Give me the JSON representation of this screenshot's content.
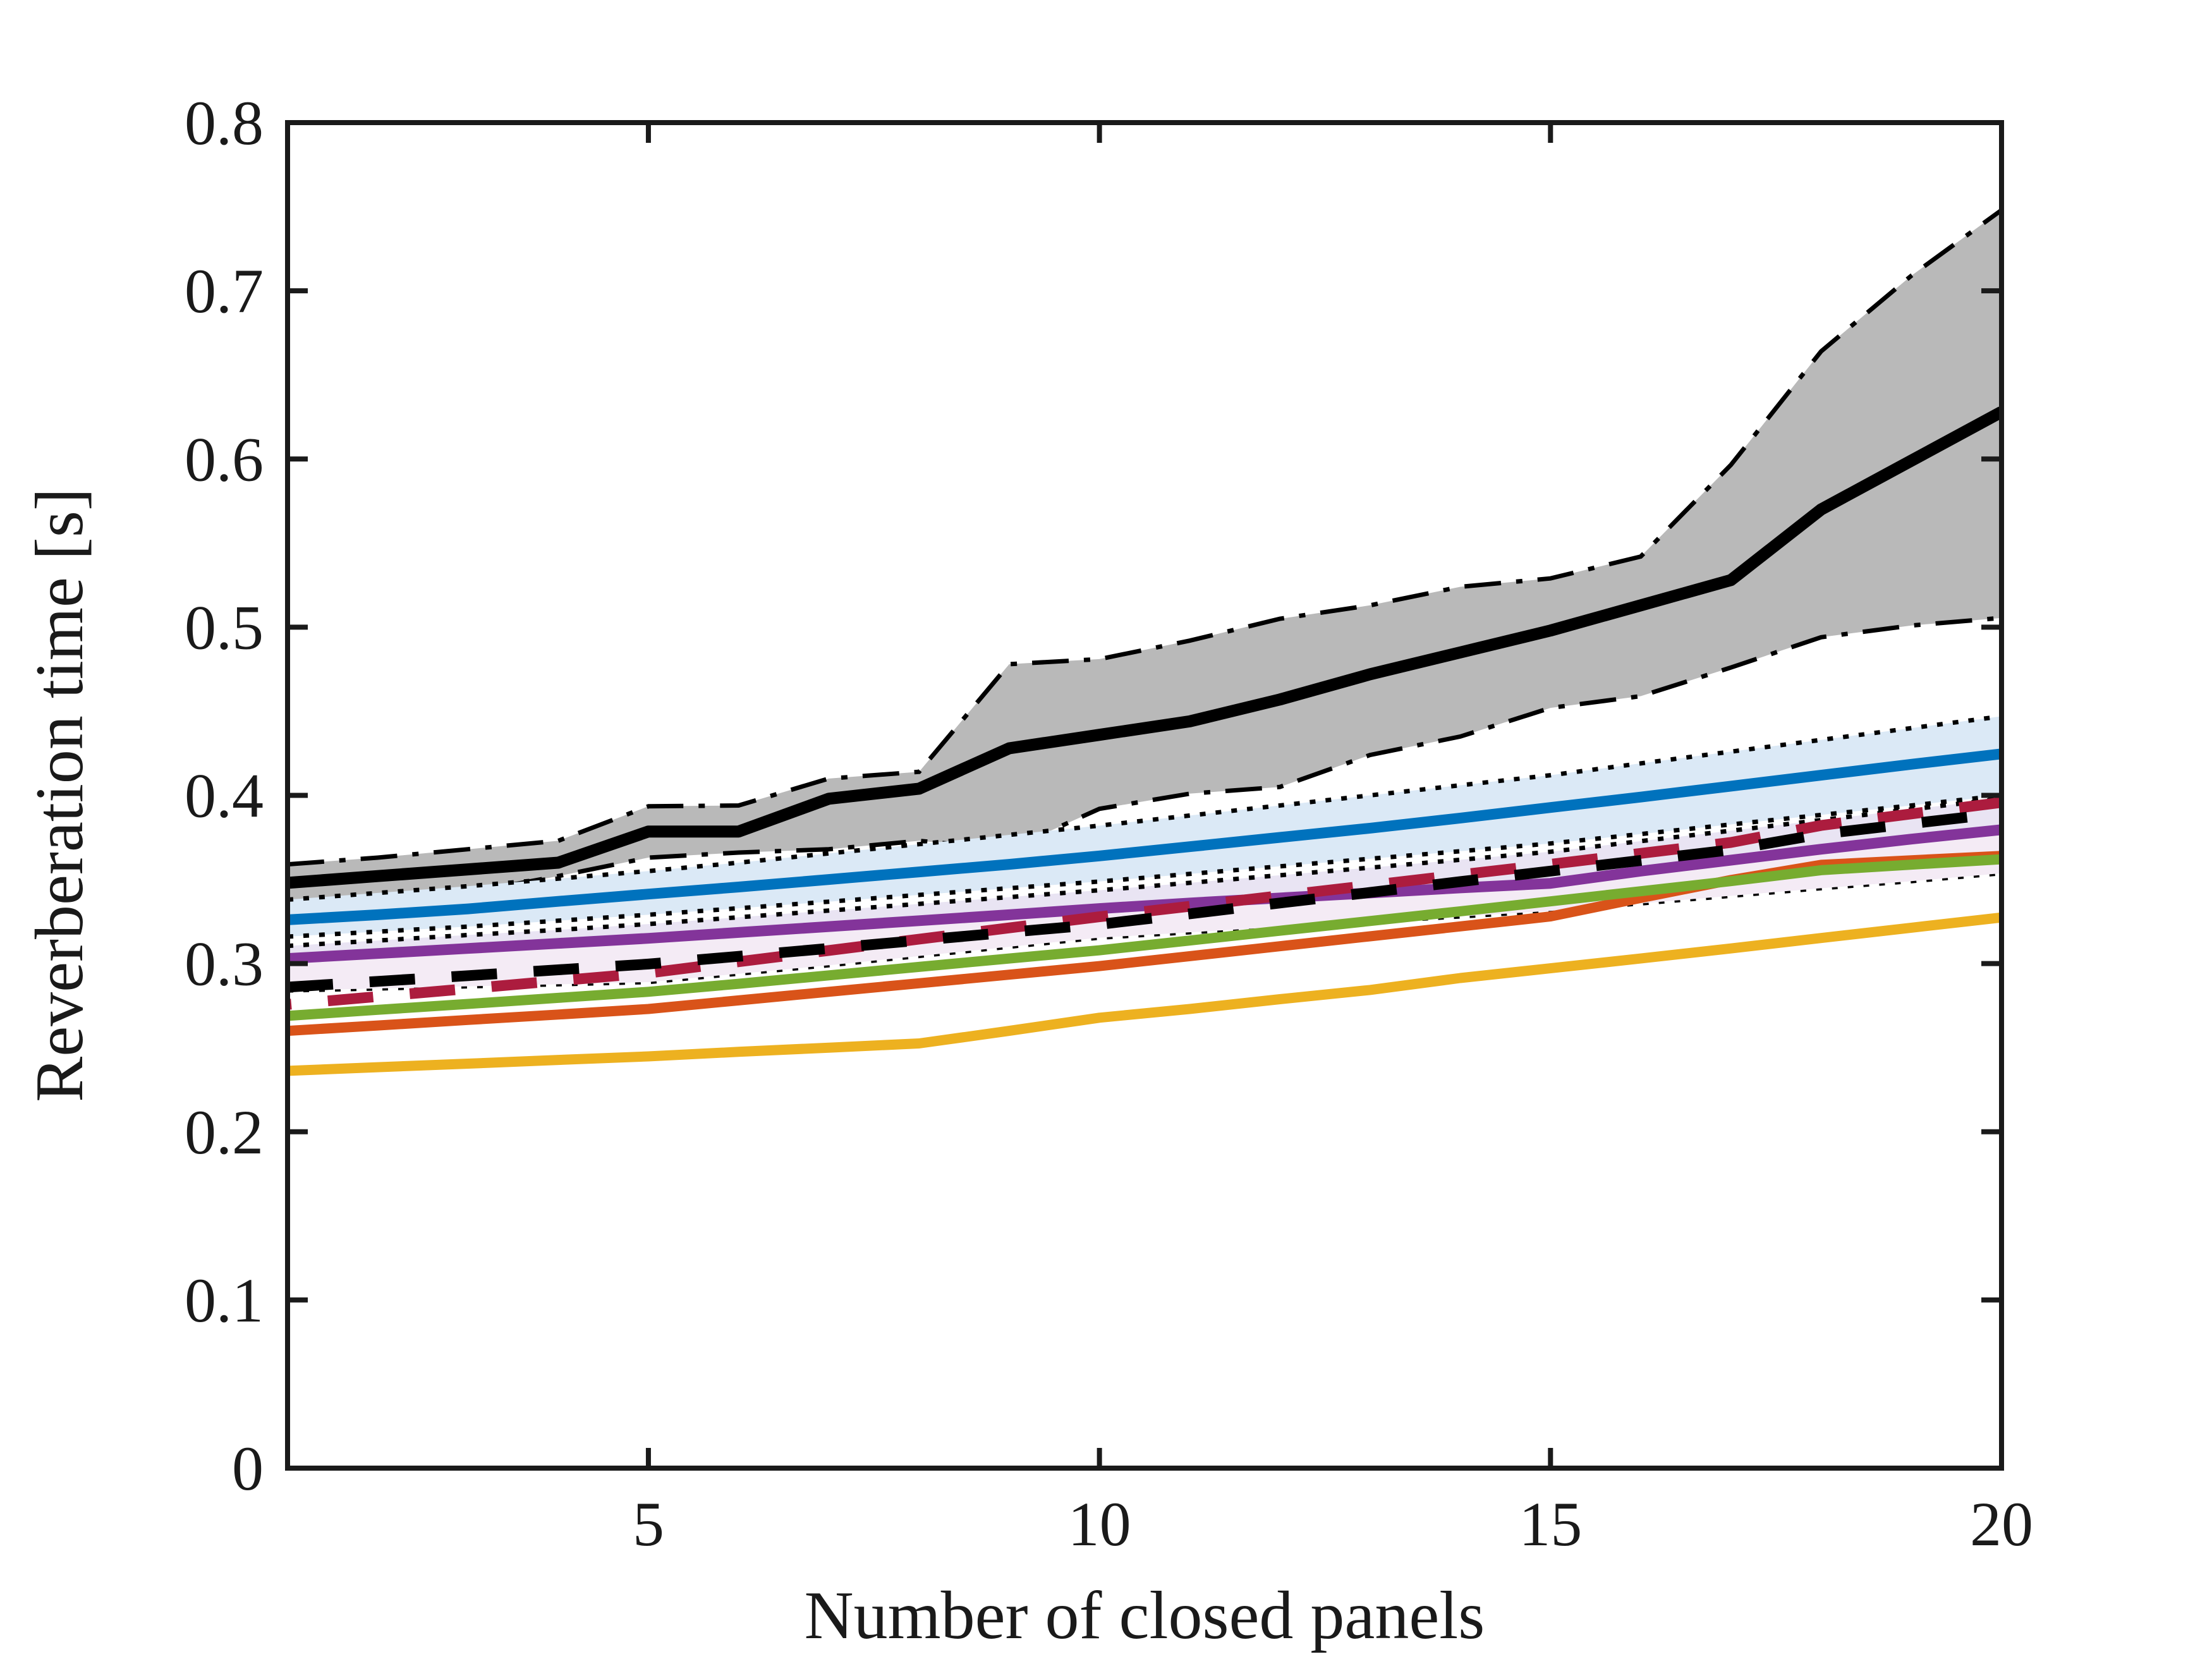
{
  "figure": {
    "kind": "line-chart-with-confidence-bands",
    "background": "#ffffff",
    "axis_color": "#1a1a1a"
  },
  "chart_data": {
    "type": "line",
    "title": "",
    "xlabel": "Number of closed panels",
    "ylabel": "Reverberation time [s]",
    "xlim": [
      1,
      20
    ],
    "ylim": [
      0,
      0.8
    ],
    "xticks": [
      5,
      10,
      15,
      20
    ],
    "xtick_labels": [
      "5",
      "10",
      "15",
      "20"
    ],
    "yticks": [
      0,
      0.1,
      0.2,
      0.3,
      0.4,
      0.5,
      0.6,
      0.7,
      0.8
    ],
    "ytick_labels": [
      "0",
      "0.1",
      "0.2",
      "0.3",
      "0.4",
      "0.5",
      "0.6",
      "0.7",
      "0.8"
    ],
    "grid": false,
    "legend": "none",
    "x": [
      1,
      2,
      3,
      4,
      5,
      6,
      7,
      8,
      9,
      10,
      11,
      12,
      13,
      14,
      15,
      16,
      17,
      18,
      19,
      20
    ],
    "bands": [
      {
        "name": "gray-uncertainty-band",
        "fill": "#b9b9b9",
        "edge_color": "#000000",
        "edge_style": "dashdot",
        "upper": [
          0.359,
          0.363,
          0.368,
          0.373,
          0.3935,
          0.394,
          0.41,
          0.414,
          0.478,
          0.481,
          0.492,
          0.505,
          0.513,
          0.524,
          0.529,
          0.542,
          0.5965,
          0.664,
          0.709,
          0.748
        ],
        "lower": [
          0.332,
          0.336,
          0.342,
          0.352,
          0.363,
          0.366,
          0.368,
          0.373,
          0.368,
          0.392,
          0.401,
          0.405,
          0.424,
          0.435,
          0.452,
          0.459,
          0.476,
          0.494,
          0.501,
          0.5055
        ]
      },
      {
        "name": "lightblue-uncertainty-band",
        "fill": "#dbe9f6",
        "edge_color": "#000000",
        "edge_style": "dotted",
        "upper": [
          0.338,
          0.342,
          0.346,
          0.3505,
          0.355,
          0.36,
          0.3655,
          0.371,
          0.3765,
          0.382,
          0.388,
          0.394,
          0.4,
          0.406,
          0.412,
          0.419,
          0.426,
          0.433,
          0.44,
          0.447
        ],
        "lower": [
          0.316,
          0.319,
          0.322,
          0.3255,
          0.329,
          0.3329,
          0.3368,
          0.3408,
          0.3448,
          0.3488,
          0.3533,
          0.3578,
          0.3623,
          0.3668,
          0.3714,
          0.377,
          0.3827,
          0.3884,
          0.394,
          0.4
        ]
      },
      {
        "name": "lavender-uncertainty-band",
        "fill": "#e9e4f3",
        "edge_color": "#000000",
        "edge_style": "dotted",
        "upper": [
          0.3105,
          0.3137,
          0.317,
          0.32,
          0.3235,
          0.3275,
          0.3315,
          0.3355,
          0.3395,
          0.3436,
          0.348,
          0.3525,
          0.357,
          0.3617,
          0.3665,
          0.3728,
          0.379,
          0.3853,
          0.3917,
          0.398
        ],
        "lower": [
          0.284,
          0.2852,
          0.2865,
          0.2877,
          0.289,
          0.294,
          0.299,
          0.3045,
          0.31,
          0.3154,
          0.3186,
          0.3218,
          0.325,
          0.328,
          0.3313,
          0.3358,
          0.3403,
          0.3448,
          0.349,
          0.3537
        ]
      },
      {
        "name": "pink-uncertainty-band",
        "fill": "#f4ebf5",
        "edge_color": "none",
        "edge_style": "none",
        "upper": [
          0.303,
          0.306,
          0.309,
          0.312,
          0.315,
          0.3185,
          0.322,
          0.3255,
          0.329,
          0.3327,
          0.336,
          0.339,
          0.342,
          0.345,
          0.3477,
          0.355,
          0.3615,
          0.368,
          0.374,
          0.3796
        ],
        "lower": [
          0.284,
          0.2852,
          0.2865,
          0.2877,
          0.289,
          0.294,
          0.299,
          0.3045,
          0.31,
          0.3154,
          0.3186,
          0.3218,
          0.325,
          0.328,
          0.3313,
          0.3358,
          0.3403,
          0.3448,
          0.349,
          0.3537
        ]
      }
    ],
    "series": [
      {
        "name": "yellow-line",
        "color": "#EDB120",
        "style": "solid",
        "width": 16,
        "values": [
          0.2362,
          0.2384,
          0.2405,
          0.2427,
          0.2448,
          0.2475,
          0.25,
          0.2525,
          0.26,
          0.2678,
          0.273,
          0.2788,
          0.2843,
          0.2914,
          0.2972,
          0.303,
          0.309,
          0.3152,
          0.3213,
          0.3274
        ]
      },
      {
        "name": "orange-line",
        "color": "#D95319",
        "style": "solid",
        "width": 16,
        "values": [
          0.26,
          0.2632,
          0.2665,
          0.2697,
          0.273,
          0.2781,
          0.2832,
          0.2883,
          0.2934,
          0.2985,
          0.3044,
          0.3103,
          0.3162,
          0.3221,
          0.328,
          0.339,
          0.3497,
          0.3587,
          0.3614,
          0.364
        ]
      },
      {
        "name": "green-line",
        "color": "#77AC30",
        "style": "solid",
        "width": 16,
        "values": [
          0.2689,
          0.2725,
          0.276,
          0.2796,
          0.2832,
          0.288,
          0.293,
          0.298,
          0.303,
          0.3079,
          0.3137,
          0.3195,
          0.3253,
          0.3311,
          0.337,
          0.343,
          0.349,
          0.3555,
          0.3588,
          0.362
        ]
      },
      {
        "name": "blue-line",
        "color": "#0072BD",
        "style": "solid",
        "width": 17,
        "values": [
          0.326,
          0.329,
          0.3325,
          0.337,
          0.3413,
          0.3455,
          0.35,
          0.3545,
          0.359,
          0.364,
          0.3695,
          0.375,
          0.3805,
          0.3865,
          0.3928,
          0.399,
          0.4055,
          0.412,
          0.4185,
          0.4247
        ]
      },
      {
        "name": "purple-line",
        "color": "#83349A",
        "style": "solid",
        "width": 17,
        "values": [
          0.303,
          0.306,
          0.309,
          0.312,
          0.315,
          0.3185,
          0.322,
          0.3255,
          0.329,
          0.3327,
          0.336,
          0.339,
          0.342,
          0.345,
          0.3477,
          0.355,
          0.3615,
          0.368,
          0.374,
          0.3796
        ]
      },
      {
        "name": "crimson-dashed-line",
        "color": "#AC1C3E",
        "style": "dashed",
        "width": 17,
        "dashoffset": 66,
        "values": [
          0.2757,
          0.2804,
          0.2851,
          0.2898,
          0.2944,
          0.3011,
          0.3078,
          0.3145,
          0.3212,
          0.3278,
          0.334,
          0.3403,
          0.3465,
          0.3528,
          0.359,
          0.3655,
          0.372,
          0.3821,
          0.389,
          0.3958
        ]
      },
      {
        "name": "black-dashed-line",
        "color": "#000000",
        "style": "dashed",
        "width": 17,
        "dashoffset": 0,
        "values": [
          0.286,
          0.2894,
          0.2928,
          0.2963,
          0.2997,
          0.3043,
          0.309,
          0.3138,
          0.3186,
          0.3233,
          0.3296,
          0.336,
          0.3423,
          0.3487,
          0.355,
          0.3613,
          0.3676,
          0.377,
          0.3832,
          0.3894
        ]
      },
      {
        "name": "black-mean-line",
        "color": "#000000",
        "style": "solid",
        "width": 19,
        "values": [
          0.348,
          0.352,
          0.356,
          0.36,
          0.3785,
          0.3785,
          0.398,
          0.404,
          0.428,
          0.436,
          0.444,
          0.457,
          0.472,
          0.485,
          0.498,
          0.513,
          0.528,
          0.57,
          0.599,
          0.628
        ]
      }
    ]
  }
}
